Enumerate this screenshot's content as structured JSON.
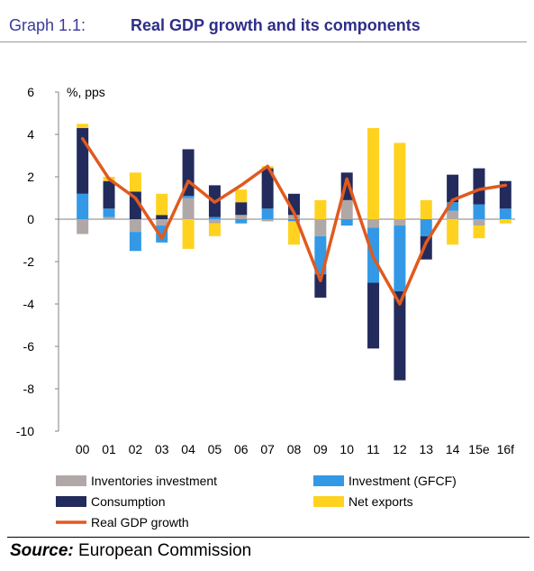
{
  "header": {
    "label": "Graph 1.1:",
    "title": "Real GDP growth and its components"
  },
  "source": {
    "key": "Source:",
    "text": " European Commission"
  },
  "colors": {
    "inventories": "#b0a8a6",
    "investment": "#3399e6",
    "consumption": "#222b5c",
    "net_exports": "#ffd21f",
    "gdp": "#e05a1e",
    "header": "#2e2e8a"
  },
  "chart_data": {
    "type": "bar",
    "stacked": true,
    "unit_label": "%, pps",
    "categories": [
      "00",
      "01",
      "02",
      "03",
      "04",
      "05",
      "06",
      "07",
      "08",
      "09",
      "10",
      "11",
      "12",
      "13",
      "14",
      "15e",
      "16f"
    ],
    "ylim": [
      -10,
      6
    ],
    "yticks": [
      6,
      4,
      2,
      0,
      -2,
      -4,
      -6,
      -8,
      -10
    ],
    "grid": false,
    "legend_position": "bottom",
    "series": [
      {
        "name": "Inventories investment",
        "key": "inventories",
        "values": [
          -0.7,
          0.1,
          -0.6,
          -0.3,
          1.0,
          -0.2,
          0.2,
          -0.1,
          0.2,
          -0.8,
          0.9,
          -0.4,
          -0.3,
          0.0,
          0.4,
          -0.3,
          0.0
        ]
      },
      {
        "name": "Investment (GFCF)",
        "key": "investment",
        "values": [
          1.2,
          0.4,
          -0.9,
          -0.8,
          0.1,
          0.1,
          -0.2,
          0.5,
          -0.1,
          -1.8,
          -0.3,
          -2.6,
          -3.1,
          -0.8,
          0.4,
          0.7,
          0.5
        ]
      },
      {
        "name": "Consumption",
        "key": "consumption",
        "values": [
          3.1,
          1.3,
          1.3,
          0.2,
          2.2,
          1.5,
          0.6,
          1.9,
          1.0,
          -1.1,
          1.3,
          -3.1,
          -4.2,
          -1.1,
          1.3,
          1.7,
          1.3
        ]
      },
      {
        "name": "Net exports",
        "key": "net_exports",
        "values": [
          0.2,
          0.2,
          0.9,
          1.0,
          -1.4,
          -0.6,
          0.6,
          0.1,
          -1.1,
          0.9,
          0.0,
          4.3,
          3.6,
          0.9,
          -1.2,
          -0.6,
          -0.2
        ]
      }
    ],
    "line": {
      "name": "Real GDP growth",
      "key": "gdp",
      "values": [
        3.8,
        1.9,
        1.0,
        -0.9,
        1.8,
        0.8,
        1.6,
        2.5,
        0.3,
        -2.9,
        1.9,
        -1.8,
        -4.0,
        -1.1,
        0.9,
        1.4,
        1.6
      ]
    },
    "legend": [
      {
        "label": "Inventories investment",
        "key": "inventories",
        "kind": "bar"
      },
      {
        "label": "Investment (GFCF)",
        "key": "investment",
        "kind": "bar"
      },
      {
        "label": "Consumption",
        "key": "consumption",
        "kind": "bar"
      },
      {
        "label": "Net exports",
        "key": "net_exports",
        "kind": "bar"
      },
      {
        "label": "Real GDP growth",
        "key": "gdp",
        "kind": "line"
      }
    ]
  }
}
